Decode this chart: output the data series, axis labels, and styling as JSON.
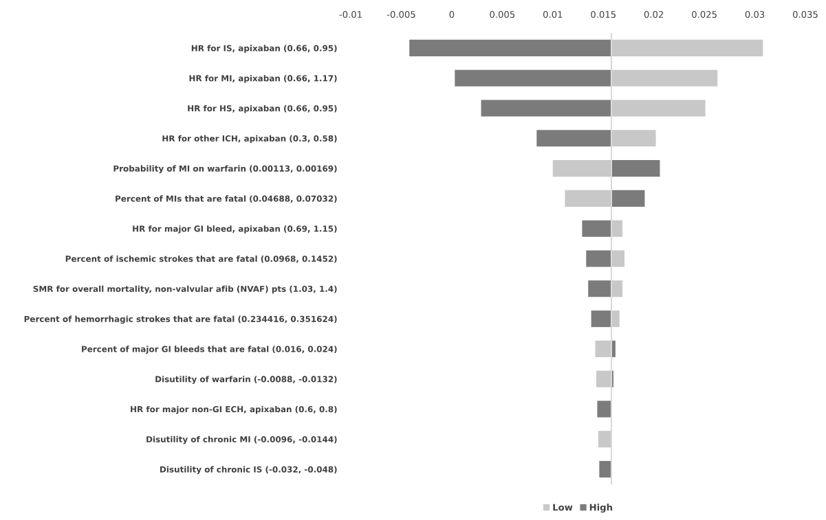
{
  "chart_data": {
    "type": "bar",
    "orientation": "horizontal",
    "categories": [
      "HR for IS, apixaban (0.66, 0.95)",
      "HR for MI, apixaban (0.66, 1.17)",
      "HR for HS, apixaban (0.66, 0.95)",
      "HR for other ICH, apixaban (0.3, 0.58)",
      "Probability of MI on warfarin (0.00113, 0.00169)",
      "Percent of MIs that are fatal (0.04688, 0.07032)",
      "HR for major GI bleed, apixaban (0.69, 1.15)",
      "Percent of ischemic strokes that are fatal (0.0968, 0.1452)",
      "SMR for overall mortality, non-valvular afib (NVAF) pts (1.03, 1.4)",
      "Percent of hemorrhagic strokes that are fatal (0.234416, 0.351624)",
      "Percent of major GI bleeds that are fatal (0.016, 0.024)",
      "Disutility of warfarin (-0.0088, -0.0132)",
      "HR for major non-GI ECH, apixaban (0.6, 0.8)",
      "Disutility of chronic MI (-0.0096, -0.0144)",
      "Disutility of chronic IS (-0.032, -0.048)"
    ],
    "series": [
      {
        "name": "Low",
        "color": "#c8c8c8",
        "base": [
          0.0158,
          0.0158,
          0.0158,
          0.0158,
          0.0158,
          0.0158,
          0.0158,
          0.0158,
          0.0158,
          0.0158,
          0.0158,
          0.0158,
          null,
          0.0158,
          null
        ],
        "values": [
          0.015,
          0.0105,
          0.0093,
          0.0044,
          -0.0058,
          -0.0046,
          0.0011,
          0.0013,
          0.0011,
          0.0008,
          -0.0016,
          -0.0015,
          null,
          -0.0013,
          null
        ]
      },
      {
        "name": "High",
        "color": "#7b7b7b",
        "base": [
          0.0158,
          0.0158,
          0.0158,
          0.0158,
          0.0158,
          0.0158,
          0.0158,
          0.0158,
          0.0158,
          0.0158,
          0.0158,
          0.0158,
          0.0158,
          null,
          0.0158
        ],
        "values": [
          -0.02,
          -0.0155,
          -0.0129,
          -0.0074,
          0.0048,
          0.0033,
          -0.0029,
          -0.0025,
          -0.0023,
          -0.002,
          0.0004,
          0.0002,
          -0.0014,
          null,
          -0.0012
        ]
      }
    ],
    "xlim": [
      -0.01,
      0.035
    ],
    "xticks": [
      -0.01,
      -0.005,
      0,
      0.005,
      0.01,
      0.015,
      0.02,
      0.025,
      0.03,
      0.035
    ],
    "ref_lines": [
      {
        "axis": "x",
        "value": 0.0158,
        "color": "#d9d9d9"
      }
    ],
    "grid": false,
    "legend": "bottom"
  }
}
